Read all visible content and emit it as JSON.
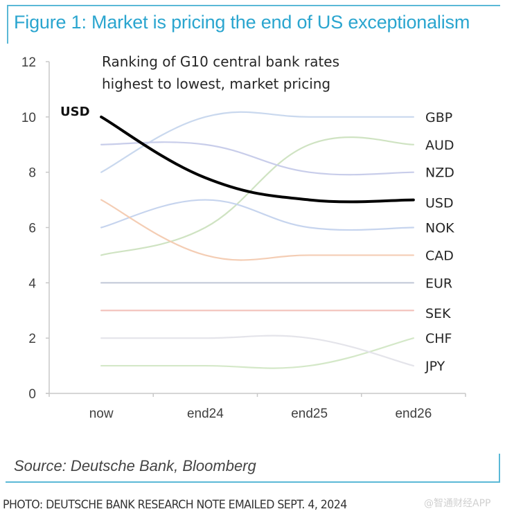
{
  "figure": {
    "title": "Figure 1: Market is pricing the end of US exceptionalism",
    "source": "Source: Deutsche Bank, Bloomberg",
    "photo_credit": "PHOTO: DEUTSCHE BANK RESEARCH NOTE EMAILED SEPT. 4, 2024",
    "watermark": "@智通财经APP"
  },
  "chart_data": {
    "type": "line",
    "title": "Ranking of G10 central bank rates highest to lowest, market pricing",
    "subtitle_lines": [
      "Ranking of G10 central bank rates",
      "highest to lowest, market pricing"
    ],
    "xlabel": "",
    "ylabel": "",
    "categories": [
      "now",
      "end24",
      "end25",
      "end26"
    ],
    "ylim": [
      0,
      12
    ],
    "yticks": [
      0,
      2,
      4,
      6,
      8,
      10,
      12
    ],
    "grid": false,
    "legend": "direct-labels-right",
    "start_label": "USD",
    "series": [
      {
        "name": "GBP",
        "values": [
          8,
          10,
          10,
          10
        ],
        "color": "#c9d8ee",
        "highlight": false
      },
      {
        "name": "AUD",
        "values": [
          5,
          6,
          9,
          9
        ],
        "color": "#cfe3c2",
        "highlight": false
      },
      {
        "name": "NZD",
        "values": [
          9,
          9,
          8,
          8
        ],
        "color": "#c8cdea",
        "highlight": false
      },
      {
        "name": "USD",
        "values": [
          10,
          7.8,
          7,
          7
        ],
        "color": "#000000",
        "highlight": true
      },
      {
        "name": "NOK",
        "values": [
          6,
          7,
          6,
          6
        ],
        "color": "#c6d4ee",
        "highlight": false
      },
      {
        "name": "CAD",
        "values": [
          7,
          5,
          5,
          5
        ],
        "color": "#f4cdb4",
        "highlight": false
      },
      {
        "name": "EUR",
        "values": [
          4,
          4,
          4,
          4
        ],
        "color": "#c4cad9",
        "highlight": false
      },
      {
        "name": "SEK",
        "values": [
          3,
          3,
          3,
          3
        ],
        "color": "#f3c4bd",
        "highlight": false
      },
      {
        "name": "CHF",
        "values": [
          1,
          1,
          1,
          2
        ],
        "color": "#d4e8c8",
        "highlight": false
      },
      {
        "name": "JPY",
        "values": [
          2,
          2,
          2,
          1
        ],
        "color": "#e4e4ea",
        "highlight": false
      }
    ],
    "label_order": [
      "GBP",
      "AUD",
      "NZD",
      "USD",
      "NOK",
      "CAD",
      "EUR",
      "SEK",
      "CHF",
      "JPY"
    ],
    "label_values": [
      10,
      9,
      8,
      6.9,
      6,
      5,
      4,
      2.9,
      2,
      1
    ]
  }
}
